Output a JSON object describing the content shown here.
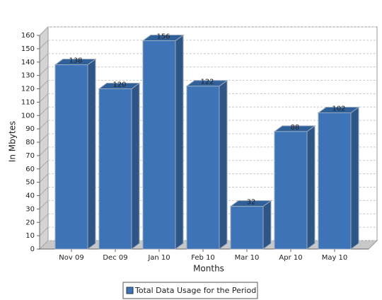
{
  "chart_data": {
    "type": "bar3d",
    "x_label": "Months",
    "y_label": "In Mbytes",
    "categories": [
      "Nov 09",
      "Dec 09",
      "Jan 10",
      "Feb 10",
      "Mar 10",
      "Apr 10",
      "May 10"
    ],
    "series": [
      {
        "name": "Total Data Usage for the Period",
        "color": "#3d74b8",
        "values": [
          138,
          120,
          156,
          122,
          32,
          88,
          102
        ]
      }
    ],
    "ylim": [
      0,
      160
    ],
    "yticks": [
      0,
      10,
      20,
      30,
      40,
      50,
      60,
      70,
      80,
      90,
      100,
      110,
      120,
      130,
      140,
      150,
      160
    ],
    "grid": true
  }
}
